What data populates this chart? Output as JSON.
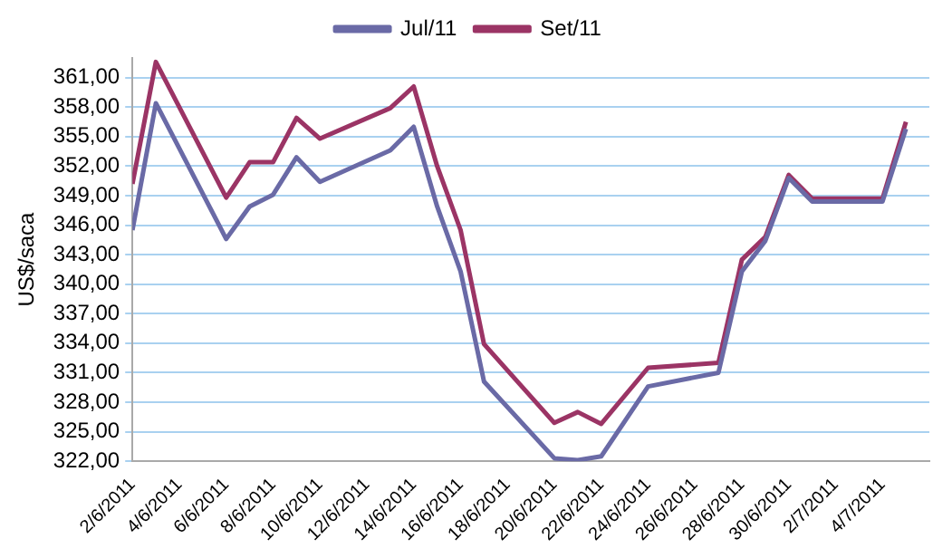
{
  "chart_data": {
    "type": "line",
    "ylabel": "US$/saca",
    "legend": "top",
    "grid": "y",
    "marker": "none",
    "line_style": "solid",
    "x": [
      "2011-06-02",
      "2011-06-03",
      "2011-06-06",
      "2011-06-07",
      "2011-06-08",
      "2011-06-09",
      "2011-06-10",
      "2011-06-13",
      "2011-06-14",
      "2011-06-15",
      "2011-06-16",
      "2011-06-17",
      "2011-06-20",
      "2011-06-21",
      "2011-06-22",
      "2011-06-24",
      "2011-06-27",
      "2011-06-28",
      "2011-06-29",
      "2011-06-30",
      "2011-07-01",
      "2011-07-04",
      "2011-07-05"
    ],
    "xlim": [
      "2011-06-02",
      "2011-07-06"
    ],
    "xticks": [
      {
        "value": "2011-06-02",
        "label": "2/6/2011"
      },
      {
        "value": "2011-06-04",
        "label": "4/6/2011"
      },
      {
        "value": "2011-06-06",
        "label": "6/6/2011"
      },
      {
        "value": "2011-06-08",
        "label": "8/6/2011"
      },
      {
        "value": "2011-06-10",
        "label": "10/6/2011"
      },
      {
        "value": "2011-06-12",
        "label": "12/6/2011"
      },
      {
        "value": "2011-06-14",
        "label": "14/6/2011"
      },
      {
        "value": "2011-06-16",
        "label": "16/6/2011"
      },
      {
        "value": "2011-06-18",
        "label": "18/6/2011"
      },
      {
        "value": "2011-06-20",
        "label": "20/6/2011"
      },
      {
        "value": "2011-06-22",
        "label": "22/6/2011"
      },
      {
        "value": "2011-06-24",
        "label": "24/6/2011"
      },
      {
        "value": "2011-06-26",
        "label": "26/6/2011"
      },
      {
        "value": "2011-06-28",
        "label": "28/6/2011"
      },
      {
        "value": "2011-06-30",
        "label": "30/6/2011"
      },
      {
        "value": "2011-07-02",
        "label": "2/7/2011"
      },
      {
        "value": "2011-07-04",
        "label": "4/7/2011"
      }
    ],
    "ylim": [
      322,
      363
    ],
    "yticks": [
      {
        "value": 322,
        "label": "322,00"
      },
      {
        "value": 325,
        "label": "325,00"
      },
      {
        "value": 328,
        "label": "328,00"
      },
      {
        "value": 331,
        "label": "331,00"
      },
      {
        "value": 334,
        "label": "334,00"
      },
      {
        "value": 337,
        "label": "337,00"
      },
      {
        "value": 340,
        "label": "340,00"
      },
      {
        "value": 343,
        "label": "343,00"
      },
      {
        "value": 346,
        "label": "346,00"
      },
      {
        "value": 349,
        "label": "349,00"
      },
      {
        "value": 352,
        "label": "352,00"
      },
      {
        "value": 355,
        "label": "355,00"
      },
      {
        "value": 358,
        "label": "358,00"
      },
      {
        "value": 361,
        "label": "361,00"
      }
    ],
    "series": [
      {
        "name": "Jul/11",
        "color": "#6a6aa6",
        "values": [
          345.5,
          358.4,
          344.6,
          347.9,
          349.1,
          352.9,
          350.4,
          353.6,
          356.0,
          347.9,
          341.3,
          330.1,
          322.3,
          322.1,
          322.5,
          329.6,
          331.0,
          341.3,
          344.4,
          350.8,
          348.4,
          348.4,
          355.8
        ]
      },
      {
        "name": "Set/11",
        "color": "#9b3465",
        "values": [
          350.2,
          362.6,
          348.8,
          352.4,
          352.4,
          356.9,
          354.8,
          357.9,
          360.1,
          352.0,
          345.5,
          333.9,
          325.9,
          327.0,
          325.8,
          331.5,
          332.0,
          342.5,
          344.8,
          351.1,
          348.7,
          348.7,
          356.5
        ]
      }
    ]
  }
}
